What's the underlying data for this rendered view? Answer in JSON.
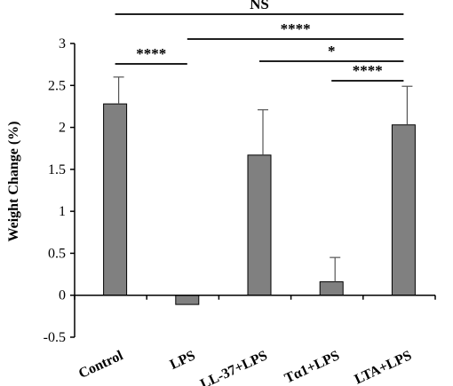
{
  "chart_data": {
    "type": "bar",
    "categories": [
      "Control",
      "LPS",
      "LL-37+LPS",
      "Tα1+LPS",
      "LTA+LPS"
    ],
    "values": [
      2.28,
      -0.11,
      1.67,
      0.16,
      2.03
    ],
    "errors": [
      0.32,
      0.0,
      0.54,
      0.29,
      0.46
    ],
    "ylabel": "Weight Change (%)",
    "xlabel": "",
    "ylim": [
      -0.5,
      3
    ],
    "yticks": [
      "-0.5",
      "0",
      "0.5",
      "1",
      "1.5",
      "2",
      "2.5",
      "3"
    ],
    "bar_color": "#808080",
    "grid": false,
    "significance": [
      {
        "from": 0,
        "to": 4,
        "label": "NS"
      },
      {
        "from": 1,
        "to": 4,
        "label": "****"
      },
      {
        "from": 0,
        "to": 1,
        "label": "****"
      },
      {
        "from": 2,
        "to": 4,
        "label": "*"
      },
      {
        "from": 3,
        "to": 4,
        "label": "****"
      }
    ]
  }
}
